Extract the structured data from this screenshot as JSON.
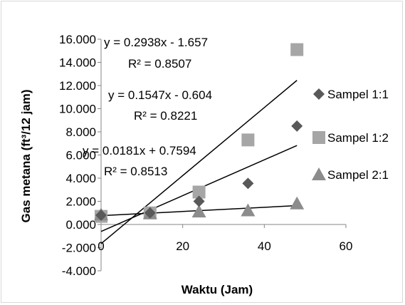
{
  "chart_data": {
    "type": "scatter",
    "xlabel": "Waktu (Jam)",
    "ylabel": "Gas metana (ft³/12 jam)",
    "xlim": [
      0,
      60
    ],
    "ylim": [
      -4000,
      16000
    ],
    "x_ticks": [
      {
        "value": 0,
        "label": "0"
      },
      {
        "value": 20,
        "label": "20"
      },
      {
        "value": 40,
        "label": "40"
      },
      {
        "value": 60,
        "label": "60"
      }
    ],
    "y_ticks": [
      {
        "value": 16000,
        "label": "16.000"
      },
      {
        "value": 14000,
        "label": "14.000"
      },
      {
        "value": 12000,
        "label": "12.000"
      },
      {
        "value": 10000,
        "label": "10.000"
      },
      {
        "value": 8000,
        "label": "8.000"
      },
      {
        "value": 6000,
        "label": "6.000"
      },
      {
        "value": 4000,
        "label": "4.000"
      },
      {
        "value": 2000,
        "label": "2.000"
      },
      {
        "value": 0,
        "label": "0.000"
      },
      {
        "value": -2000,
        "label": "-2.000"
      },
      {
        "value": -4000,
        "label": "-4.000"
      }
    ],
    "grid": false,
    "legend_position": "right",
    "series": [
      {
        "name": "Sampel 1:1",
        "marker": "diamond",
        "color": "#595959",
        "points": [
          [
            0,
            800
          ],
          [
            12,
            1000
          ],
          [
            24,
            2000
          ],
          [
            36,
            3550
          ],
          [
            48,
            8500
          ]
        ],
        "trendline": {
          "slope": 154.7,
          "intercept": -604,
          "equation": "y = 0.1547x - 0.604",
          "r2": "R² = 0.8221"
        }
      },
      {
        "name": "Sampel 1:2",
        "marker": "square",
        "color": "#a6a6a6",
        "points": [
          [
            0,
            700
          ],
          [
            12,
            1000
          ],
          [
            24,
            2800
          ],
          [
            36,
            7300
          ],
          [
            48,
            15100
          ]
        ],
        "trendline": {
          "slope": 293.8,
          "intercept": -1657,
          "equation": "y = 0.2938x - 1.657",
          "r2": "R² = 0.8507"
        }
      },
      {
        "name": "Sampel 2:1",
        "marker": "triangle",
        "color": "#8c8c8c",
        "points": [
          [
            0,
            850
          ],
          [
            12,
            950
          ],
          [
            24,
            1100
          ],
          [
            36,
            1200
          ],
          [
            48,
            1800
          ]
        ],
        "trendline": {
          "slope": 18.1,
          "intercept": 759.4,
          "equation": "y = 0.0181x + 0.7594",
          "r2": "R² = 0.8513"
        }
      }
    ]
  }
}
